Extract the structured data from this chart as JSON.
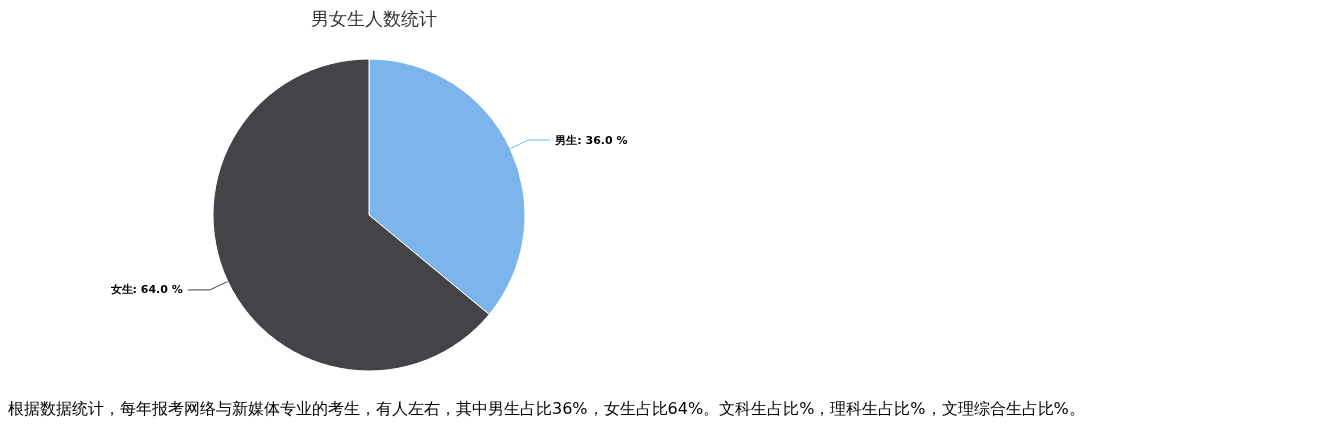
{
  "chart_data": {
    "type": "pie",
    "title": "男女生人数统计",
    "categories": [
      "男生",
      "女生"
    ],
    "values": [
      36,
      64
    ],
    "colors": [
      "#7cb5ec",
      "#434348"
    ],
    "value_labels": [
      "36.0 %",
      "64.0 %"
    ],
    "legend": false,
    "annotations": [
      "根据数据统计，每年报考网络与新媒体专业的考生，有人左右，其中男生占比36%，女生占比64%。文科生占比%，理科生占比%，文理综合生占比%。"
    ]
  }
}
